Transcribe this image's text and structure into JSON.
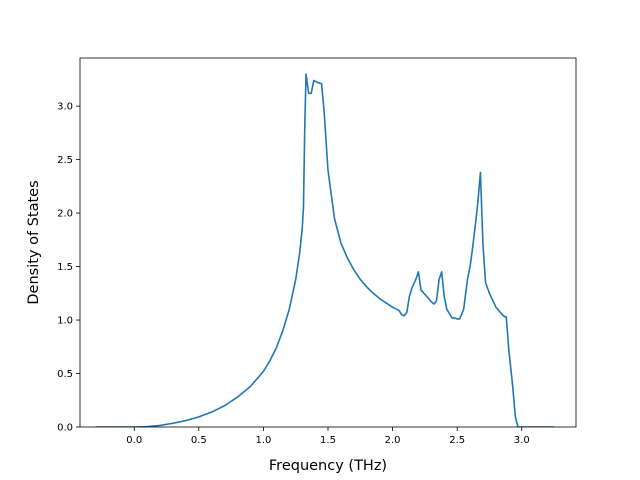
{
  "chart_data": {
    "type": "line",
    "xlabel": "Frequency (THz)",
    "ylabel": "Density of States",
    "xlim": [
      -0.42,
      3.42
    ],
    "ylim": [
      0.0,
      3.45
    ],
    "grid": false,
    "legend": "none",
    "line_color": "#1f77b4",
    "xticks": [
      0.0,
      0.5,
      1.0,
      1.5,
      2.0,
      2.5,
      3.0
    ],
    "xtick_labels": [
      "0.0",
      "0.5",
      "1.0",
      "1.5",
      "2.0",
      "2.5",
      "3.0"
    ],
    "yticks": [
      0.0,
      0.5,
      1.0,
      1.5,
      2.0,
      2.5,
      3.0
    ],
    "ytick_labels": [
      "0.0",
      "0.5",
      "1.0",
      "1.5",
      "2.0",
      "2.5",
      "3.0"
    ],
    "series": [
      {
        "x": [
          -0.3,
          0.0,
          0.1,
          0.2,
          0.3,
          0.4,
          0.5,
          0.6,
          0.7,
          0.8,
          0.9,
          1.0,
          1.05,
          1.1,
          1.15,
          1.2,
          1.25,
          1.28,
          1.3,
          1.31,
          1.32,
          1.33,
          1.35,
          1.37,
          1.39,
          1.42,
          1.45,
          1.47,
          1.5,
          1.55,
          1.6,
          1.65,
          1.7,
          1.75,
          1.8,
          1.85,
          1.9,
          1.95,
          2.0,
          2.05,
          2.07,
          2.09,
          2.11,
          2.13,
          2.15,
          2.18,
          2.2,
          2.22,
          2.25,
          2.28,
          2.3,
          2.32,
          2.34,
          2.36,
          2.38,
          2.4,
          2.42,
          2.44,
          2.46,
          2.48,
          2.5,
          2.52,
          2.55,
          2.58,
          2.6,
          2.62,
          2.64,
          2.66,
          2.68,
          2.7,
          2.72,
          2.75,
          2.8,
          2.85,
          2.87,
          2.88,
          2.9,
          2.93,
          2.95,
          2.97,
          3.0,
          3.1,
          3.25
        ],
        "y": [
          0.0,
          0.0,
          0.003,
          0.015,
          0.035,
          0.06,
          0.095,
          0.14,
          0.2,
          0.28,
          0.38,
          0.52,
          0.62,
          0.74,
          0.9,
          1.1,
          1.38,
          1.62,
          1.85,
          2.05,
          2.8,
          3.3,
          3.12,
          3.12,
          3.24,
          3.22,
          3.21,
          2.95,
          2.4,
          1.95,
          1.72,
          1.58,
          1.47,
          1.38,
          1.31,
          1.25,
          1.2,
          1.16,
          1.12,
          1.09,
          1.05,
          1.04,
          1.07,
          1.22,
          1.3,
          1.38,
          1.45,
          1.28,
          1.24,
          1.2,
          1.17,
          1.15,
          1.18,
          1.38,
          1.45,
          1.22,
          1.1,
          1.06,
          1.02,
          1.02,
          1.01,
          1.01,
          1.1,
          1.38,
          1.5,
          1.68,
          1.88,
          2.1,
          2.38,
          1.7,
          1.35,
          1.25,
          1.12,
          1.05,
          1.03,
          1.03,
          0.72,
          0.38,
          0.1,
          0.0,
          0.0,
          0.0,
          0.0
        ]
      }
    ]
  }
}
